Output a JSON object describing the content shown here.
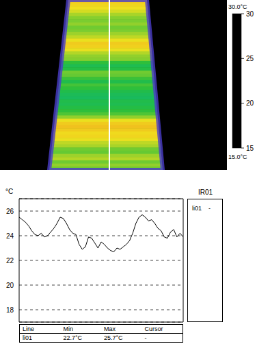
{
  "thermal_image": {
    "colorbar": {
      "range": [
        15,
        30
      ],
      "ticks": [
        15,
        20,
        25,
        30
      ],
      "top_label": "30.0°C",
      "bottom_label": "15.0°C"
    }
  },
  "chart_data": {
    "type": "line",
    "y_label": "°C",
    "x": [
      0,
      1,
      2,
      3,
      4,
      5,
      6,
      7,
      8,
      9,
      10,
      11,
      12,
      13,
      14,
      15,
      16,
      17,
      18,
      19,
      20,
      21,
      22,
      23,
      24,
      25,
      26,
      27,
      28,
      29,
      30,
      31,
      32,
      33,
      34,
      35,
      36,
      37,
      38,
      39,
      40,
      41,
      42,
      43,
      44,
      45,
      46,
      47,
      48,
      49,
      50,
      51,
      52
    ],
    "xlim": [
      0,
      52
    ],
    "values": [
      25.5,
      25.3,
      25.1,
      24.8,
      24.4,
      24.1,
      24.0,
      24.2,
      23.9,
      24.0,
      24.3,
      24.6,
      25.0,
      25.5,
      25.4,
      25.0,
      24.5,
      24.2,
      24.1,
      23.3,
      22.9,
      23.1,
      23.9,
      23.8,
      23.4,
      23.0,
      23.5,
      23.3,
      23.0,
      22.8,
      22.7,
      23.0,
      22.9,
      23.1,
      23.3,
      23.6,
      24.2,
      25.0,
      25.5,
      25.7,
      25.5,
      25.2,
      25.3,
      25.0,
      24.6,
      24.4,
      23.9,
      23.8,
      24.3,
      24.5,
      23.9,
      24.2,
      23.9
    ],
    "color": "#000000",
    "ylim": [
      17,
      27
    ],
    "yticks": [
      18,
      20,
      22,
      24,
      26
    ],
    "grid": true,
    "tick_labels": "y"
  },
  "side_panel": {
    "title": "IR01",
    "rows": [
      [
        "li01",
        "-"
      ]
    ]
  },
  "table": {
    "header": [
      "Line",
      "Min",
      "Max",
      "Cursor"
    ],
    "rows": [
      [
        "li01",
        "22.7°C",
        "25.7°C",
        "-"
      ]
    ]
  }
}
